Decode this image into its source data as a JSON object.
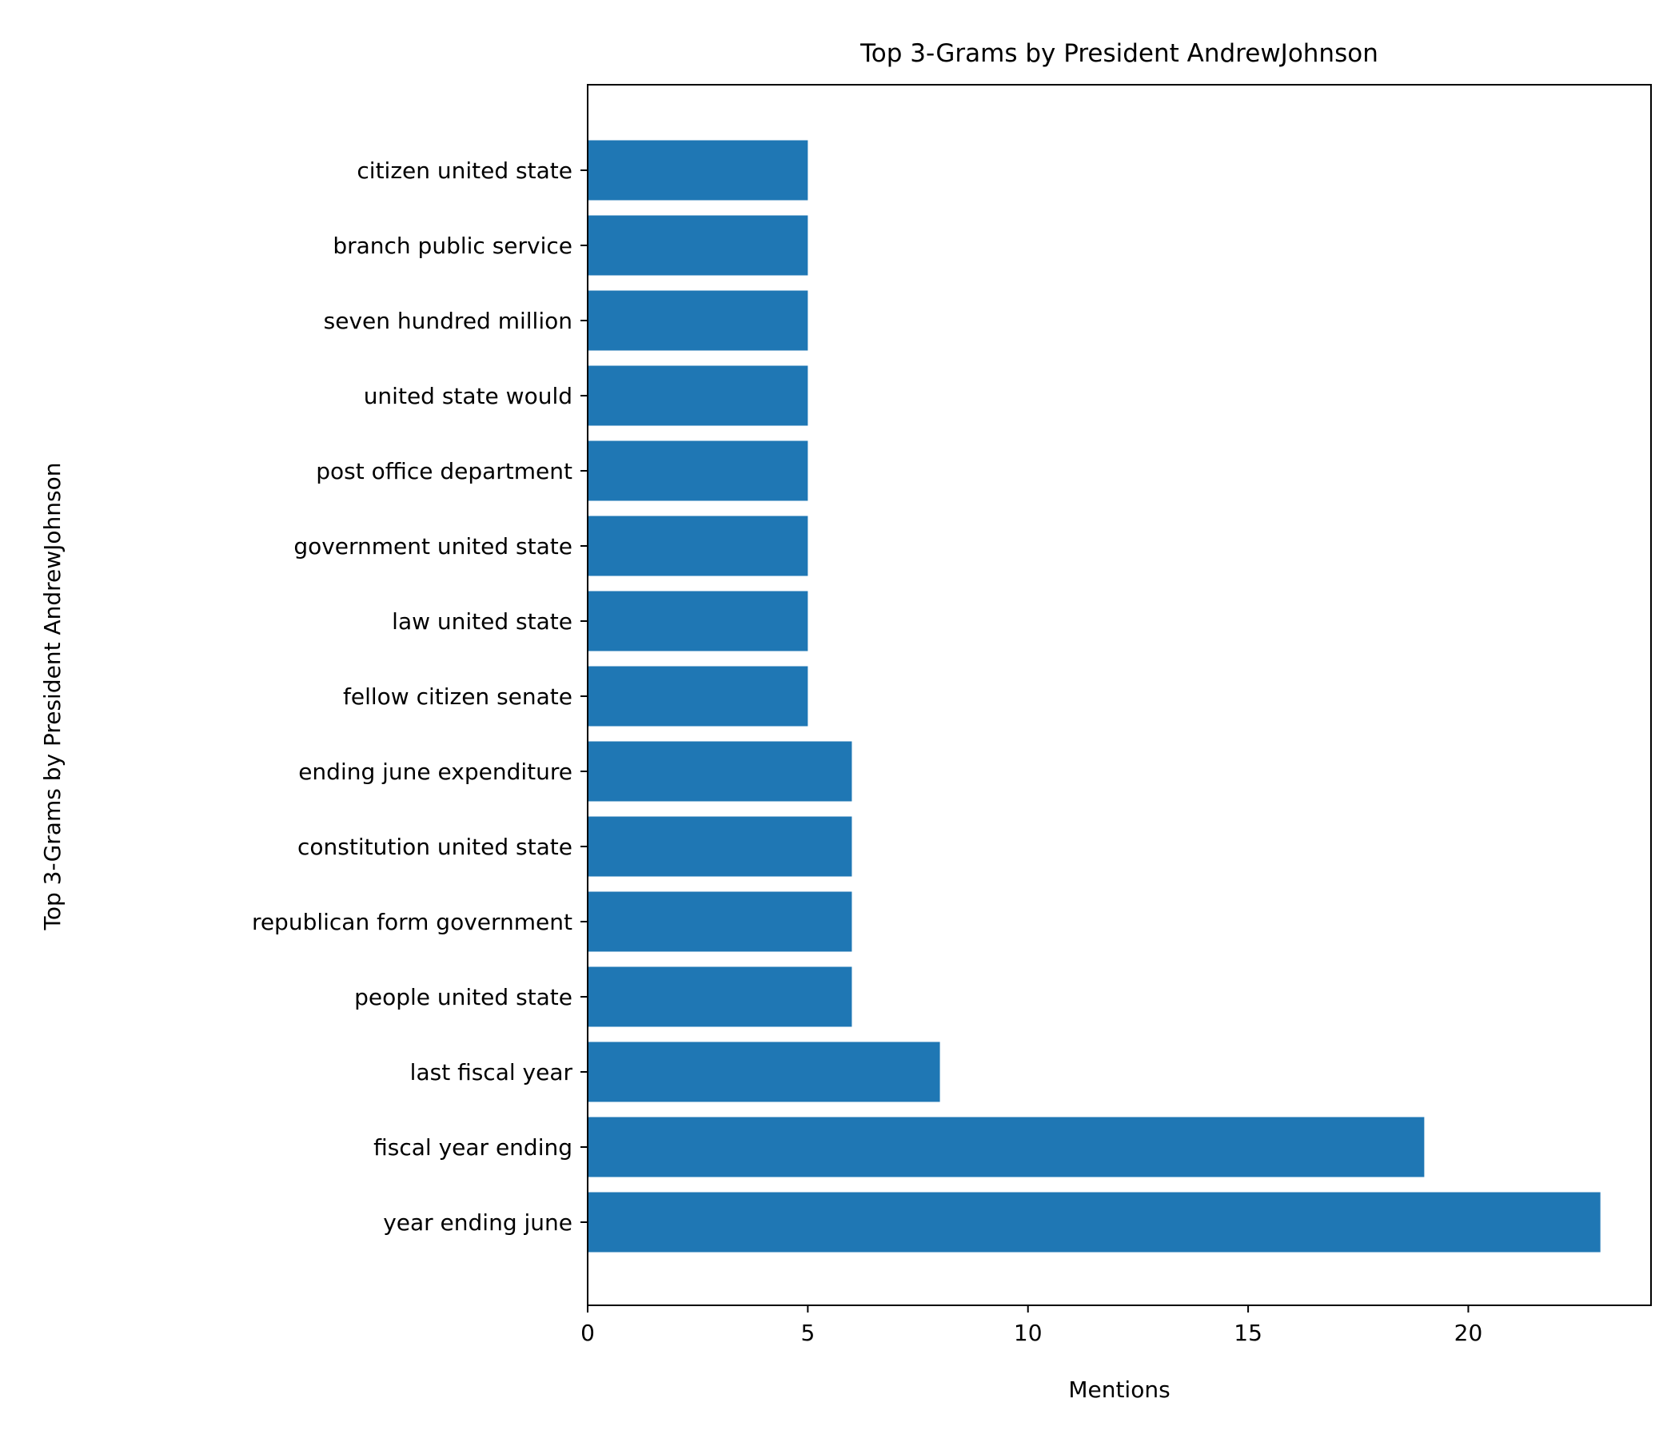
{
  "chart_data": {
    "type": "bar",
    "orientation": "horizontal",
    "title": "Top 3-Grams by President AndrewJohnson",
    "xlabel": "Mentions",
    "ylabel": "Top 3-Grams by President AndrewJohnson",
    "xlim": [
      0,
      24.15
    ],
    "xticks": [
      0,
      5,
      10,
      15,
      20
    ],
    "grid": false,
    "bar_color": "#1f77b4",
    "categories": [
      "year ending june",
      "fiscal year ending",
      "last fiscal year",
      "people united state",
      "republican form government",
      "constitution united state",
      "ending june expenditure",
      "fellow citizen senate",
      "law united state",
      "government united state",
      "post office department",
      "united state would",
      "seven hundred million",
      "branch public service",
      "citizen united state"
    ],
    "values": [
      23,
      19,
      8,
      6,
      6,
      6,
      6,
      5,
      5,
      5,
      5,
      5,
      5,
      5,
      5
    ]
  }
}
